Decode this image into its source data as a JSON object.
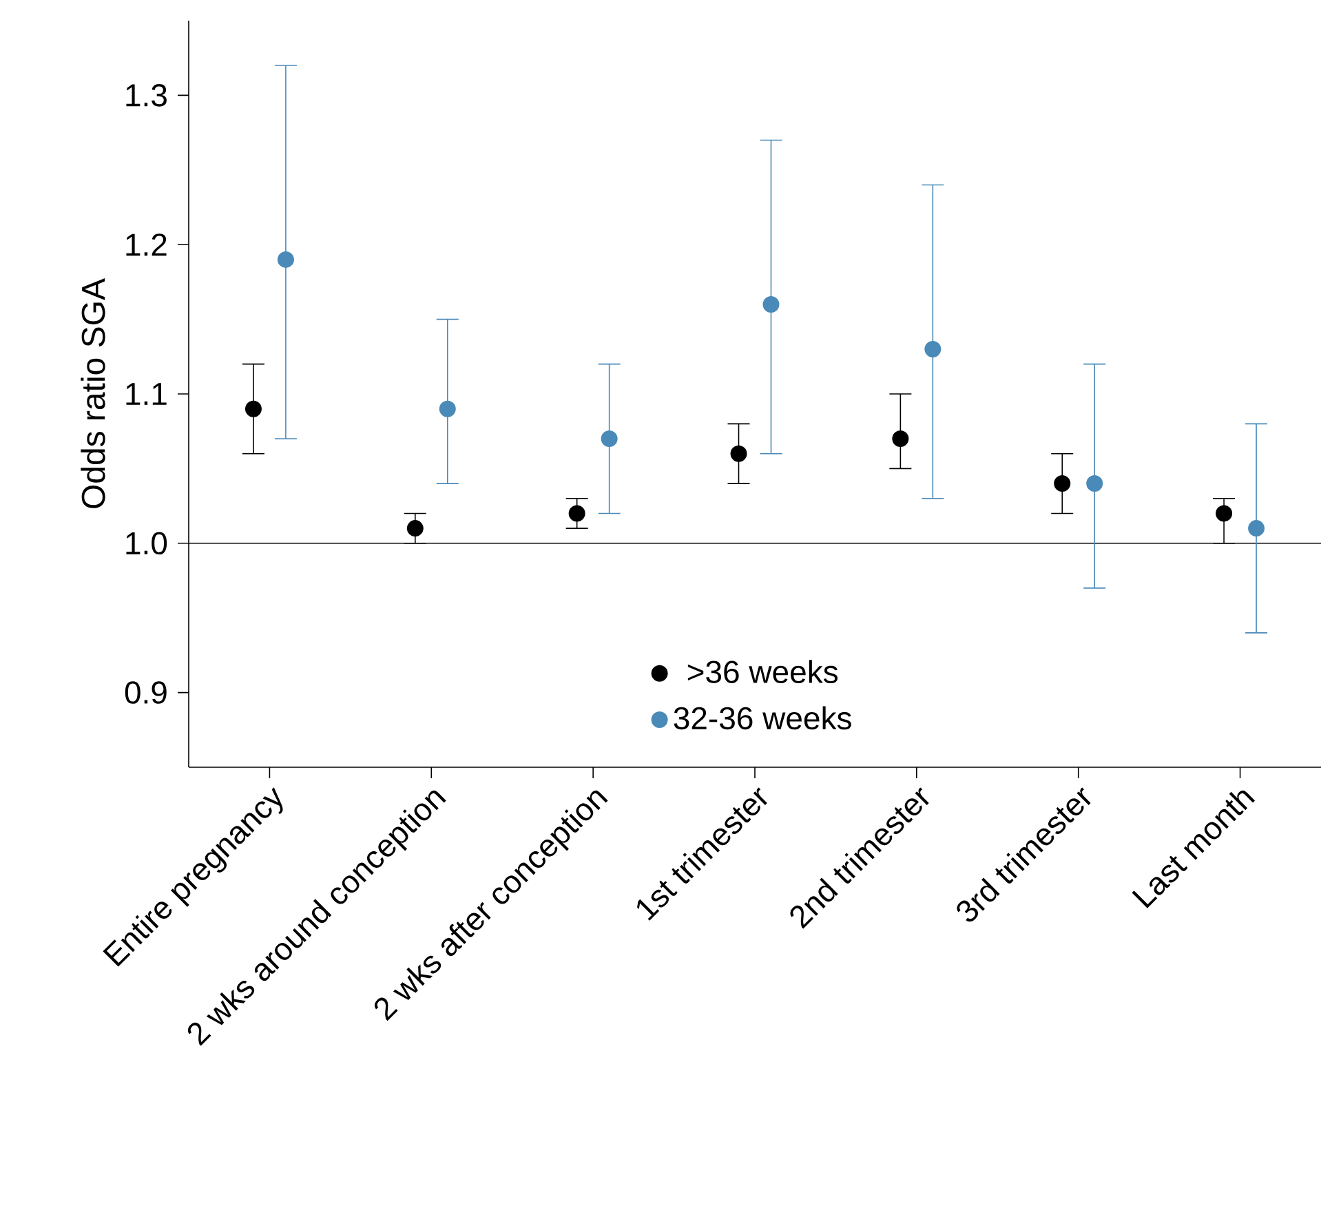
{
  "chart_data": {
    "type": "scatter",
    "ylabel": "Odds ratio SGA",
    "categories": [
      "Entire pregnancy",
      "2 wks around conception",
      "2 wks after conception",
      "1st trimester",
      "2nd trimester",
      "3rd trimester",
      "Last month"
    ],
    "series": [
      {
        "name": ">36 weeks",
        "color": "#000000",
        "values": [
          1.09,
          1.01,
          1.02,
          1.06,
          1.07,
          1.04,
          1.02
        ],
        "errors": [
          [
            1.06,
            1.12
          ],
          [
            1.0,
            1.02
          ],
          [
            1.01,
            1.03
          ],
          [
            1.04,
            1.08
          ],
          [
            1.05,
            1.1
          ],
          [
            1.02,
            1.06
          ],
          [
            1.0,
            1.03
          ]
        ]
      },
      {
        "name": "32-36 weeks",
        "color": "#4a8ab8",
        "values": [
          1.19,
          1.09,
          1.07,
          1.16,
          1.13,
          1.04,
          1.01
        ],
        "errors": [
          [
            1.07,
            1.32
          ],
          [
            1.04,
            1.15
          ],
          [
            1.02,
            1.12
          ],
          [
            1.06,
            1.27
          ],
          [
            1.03,
            1.24
          ],
          [
            0.97,
            1.12
          ],
          [
            0.94,
            1.08
          ]
        ]
      }
    ],
    "ylim": [
      0.85,
      1.35
    ],
    "yticks": [
      0.9,
      {
        "value": 1.0,
        "label": "1.0"
      },
      1.1,
      1.2,
      1.3
    ],
    "ref_lines": [
      {
        "axis": "y",
        "value": 1.0
      }
    ],
    "legend": "bottom",
    "marker": "circle",
    "grid": false
  }
}
